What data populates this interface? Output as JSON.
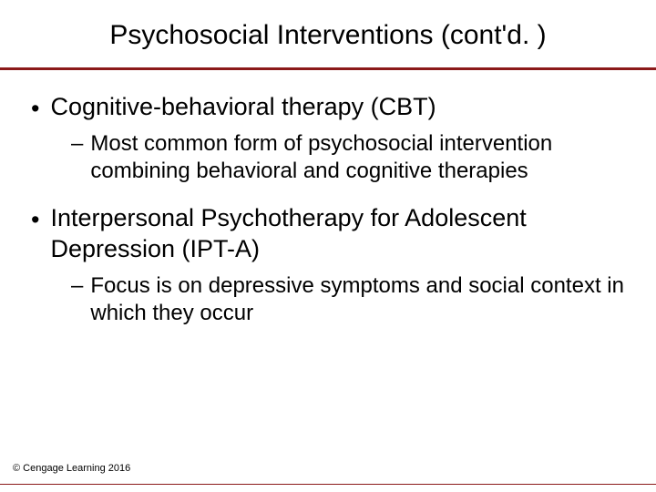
{
  "slide": {
    "title": "Psychosocial Interventions (cont'd. )",
    "bullets": [
      {
        "level": 1,
        "text": "Cognitive-behavioral therapy (CBT)"
      },
      {
        "level": 2,
        "text": "Most common form of psychosocial intervention combining behavioral and cognitive therapies"
      },
      {
        "level": 1,
        "text": "Interpersonal Psychotherapy for Adolescent Depression (IPT-A)"
      },
      {
        "level": 2,
        "text": "Focus is on depressive symptoms and social context in which they occur"
      }
    ],
    "copyright": "© Cengage Learning 2016"
  },
  "style": {
    "background_color": "#ffffff",
    "text_color": "#000000",
    "divider_color": "#8b1a1a",
    "title_fontsize": 30,
    "bullet1_fontsize": 27,
    "bullet2_fontsize": 24,
    "copyright_fontsize": 11,
    "font_family": "Arial"
  }
}
